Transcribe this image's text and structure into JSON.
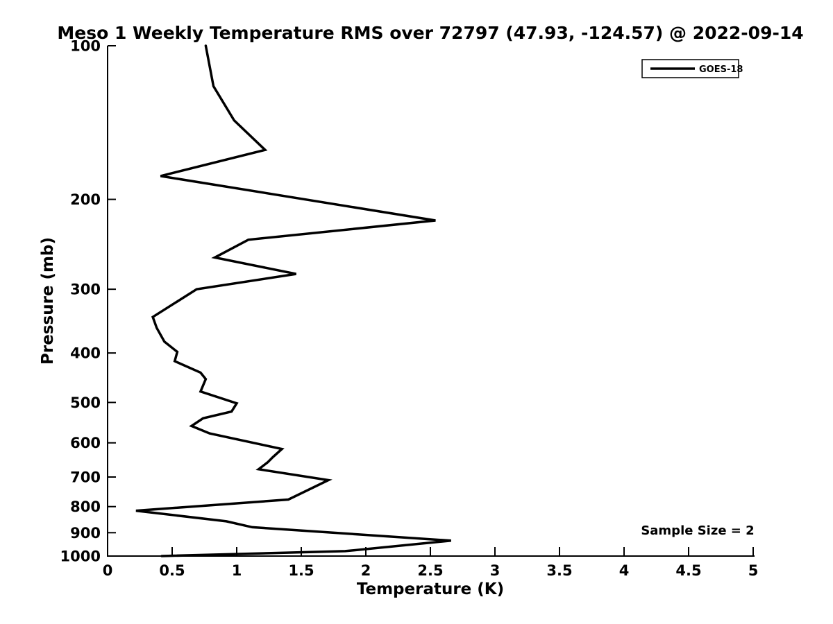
{
  "title": "Meso 1 Weekly Temperature RMS over 72797 (47.93, -124.57) @ 2022-09-14",
  "colors": {
    "background": "#ffffff",
    "foreground": "#000000",
    "line": "#000000"
  },
  "legend": {
    "entries": [
      {
        "label": "GOES-18",
        "color": "#000000"
      }
    ],
    "position": "upper right"
  },
  "chart_data": {
    "type": "line",
    "title": "Meso 1 Weekly Temperature RMS over 72797 (47.93, -124.57) @ 2022-09-14",
    "xlabel": "Temperature (K)",
    "ylabel": "Pressure (mb)",
    "xlim": [
      0,
      5
    ],
    "ylim": [
      100,
      1000
    ],
    "yscale": "log",
    "y_axis_direction": "reversed (100 mb at top, 1000 mb at bottom)",
    "grid": false,
    "legend_position": "upper right",
    "xticks": {
      "values": [
        0,
        0.5,
        1,
        1.5,
        2,
        2.5,
        3,
        3.5,
        4,
        4.5,
        5
      ],
      "labels": [
        "0",
        "0.5",
        "1",
        "1.5",
        "2",
        "2.5",
        "3",
        "3.5",
        "4",
        "4.5",
        "5"
      ]
    },
    "yticks": {
      "values": [
        100,
        200,
        300,
        400,
        500,
        600,
        700,
        800,
        900,
        1000
      ],
      "labels": [
        "100",
        "200",
        "300",
        "400",
        "500",
        "600",
        "700",
        "800",
        "900",
        "1000"
      ]
    },
    "series": [
      {
        "name": "GOES-18",
        "color": "#000000",
        "pressure_mb": [
          100,
          120,
          140,
          160,
          180,
          220,
          240,
          260,
          280,
          300,
          340,
          357,
          380,
          398,
          415,
          437,
          450,
          476,
          502,
          521,
          537,
          556,
          575,
          617,
          640,
          655,
          676,
          710,
          775,
          815,
          855,
          878,
          933,
          978,
          1000
        ],
        "rms_k": [
          0.76,
          0.82,
          0.98,
          1.22,
          0.41,
          2.54,
          1.09,
          0.83,
          1.46,
          0.69,
          0.35,
          0.38,
          0.44,
          0.54,
          0.52,
          0.72,
          0.76,
          0.72,
          1.0,
          0.96,
          0.74,
          0.65,
          0.79,
          1.35,
          1.28,
          1.24,
          1.17,
          1.71,
          1.4,
          0.22,
          0.92,
          1.12,
          2.66,
          1.84,
          0.42
        ]
      }
    ],
    "annotations": [
      {
        "text": "Sample Size = 2",
        "position": "lower right"
      }
    ]
  }
}
